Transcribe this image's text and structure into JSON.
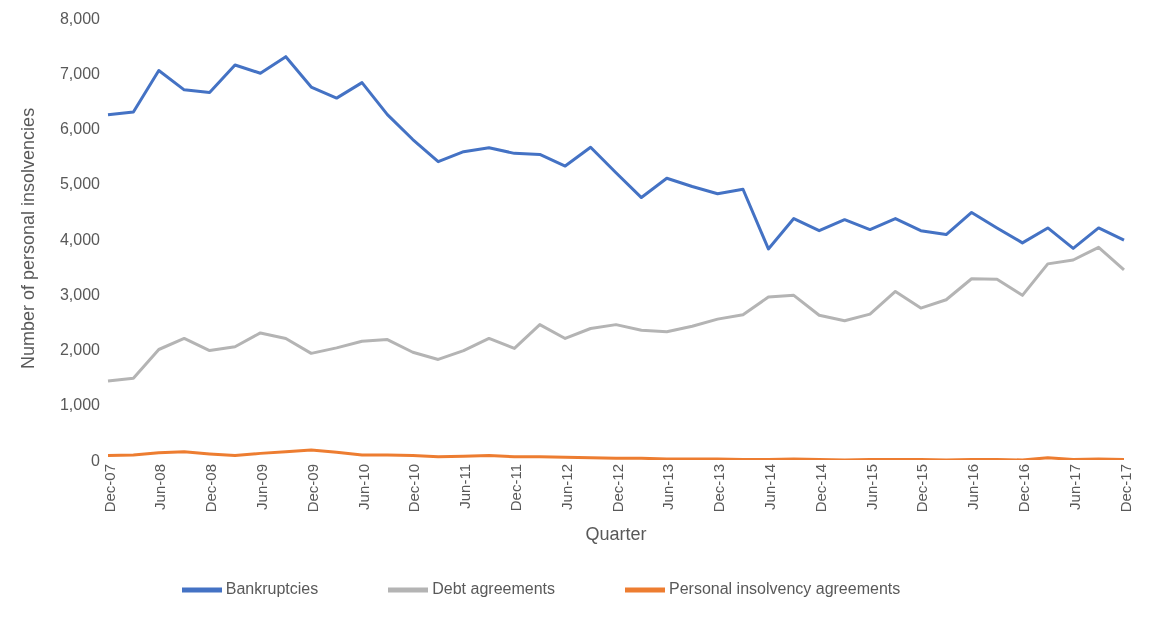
{
  "chart_data": {
    "type": "line",
    "xlabel": "Quarter",
    "ylabel": "Number of personal insolvencies",
    "categories": [
      "Dec-07",
      null,
      "Jun-08",
      null,
      "Dec-08",
      null,
      "Jun-09",
      null,
      "Dec-09",
      null,
      "Jun-10",
      null,
      "Dec-10",
      null,
      "Jun-11",
      null,
      "Dec-11",
      null,
      "Jun-12",
      null,
      "Dec-12",
      null,
      "Jun-13",
      null,
      "Dec-13",
      null,
      "Jun-14",
      null,
      "Dec-14",
      null,
      "Jun-15",
      null,
      "Dec-15",
      null,
      "Jun-16",
      null,
      "Dec-16",
      null,
      "Jun-17",
      null,
      "Dec-17"
    ],
    "series": [
      {
        "name": "Bankruptcies",
        "color": "#4472c4",
        "values": [
          6250,
          6300,
          7050,
          6700,
          6650,
          7150,
          7000,
          7300,
          6750,
          6550,
          6830,
          6250,
          5800,
          5400,
          5580,
          5650,
          5550,
          5530,
          5320,
          5660,
          5200,
          4750,
          5100,
          4950,
          4820,
          4900,
          3820,
          4370,
          4150,
          4350,
          4170,
          4370,
          4150,
          4080,
          4480,
          4200,
          3930,
          4200,
          3830,
          4200,
          3980
        ]
      },
      {
        "name": "Debt agreements",
        "color": "#b4b4b4",
        "values": [
          1430,
          1480,
          2000,
          2200,
          1980,
          2050,
          2300,
          2200,
          1930,
          2030,
          2150,
          2180,
          1950,
          1820,
          1980,
          2200,
          2020,
          2450,
          2200,
          2380,
          2450,
          2350,
          2320,
          2420,
          2550,
          2630,
          2950,
          2980,
          2620,
          2520,
          2640,
          3050,
          2750,
          2900,
          3280,
          3270,
          2980,
          3550,
          3620,
          3850,
          3440
        ]
      },
      {
        "name": "Personal insolvency agreements",
        "color": "#ed7d31",
        "values": [
          80,
          90,
          130,
          150,
          110,
          80,
          120,
          150,
          180,
          140,
          90,
          90,
          80,
          60,
          70,
          80,
          60,
          60,
          50,
          40,
          30,
          30,
          20,
          20,
          20,
          10,
          10,
          20,
          10,
          0,
          10,
          10,
          10,
          0,
          10,
          10,
          0,
          40,
          10,
          20,
          10
        ]
      }
    ],
    "ylim": [
      0,
      8000
    ],
    "yticks": [
      {
        "value": 0,
        "label": "0"
      },
      {
        "value": 1000,
        "label": "1,000"
      },
      {
        "value": 2000,
        "label": "2,000"
      },
      {
        "value": 3000,
        "label": "3,000"
      },
      {
        "value": 4000,
        "label": "4,000"
      },
      {
        "value": 5000,
        "label": "5,000"
      },
      {
        "value": 6000,
        "label": "6,000"
      },
      {
        "value": 7000,
        "label": "7,000"
      },
      {
        "value": 8000,
        "label": "8,000"
      }
    ],
    "legend": "bottom",
    "marker": "none",
    "line_style": "solid"
  }
}
